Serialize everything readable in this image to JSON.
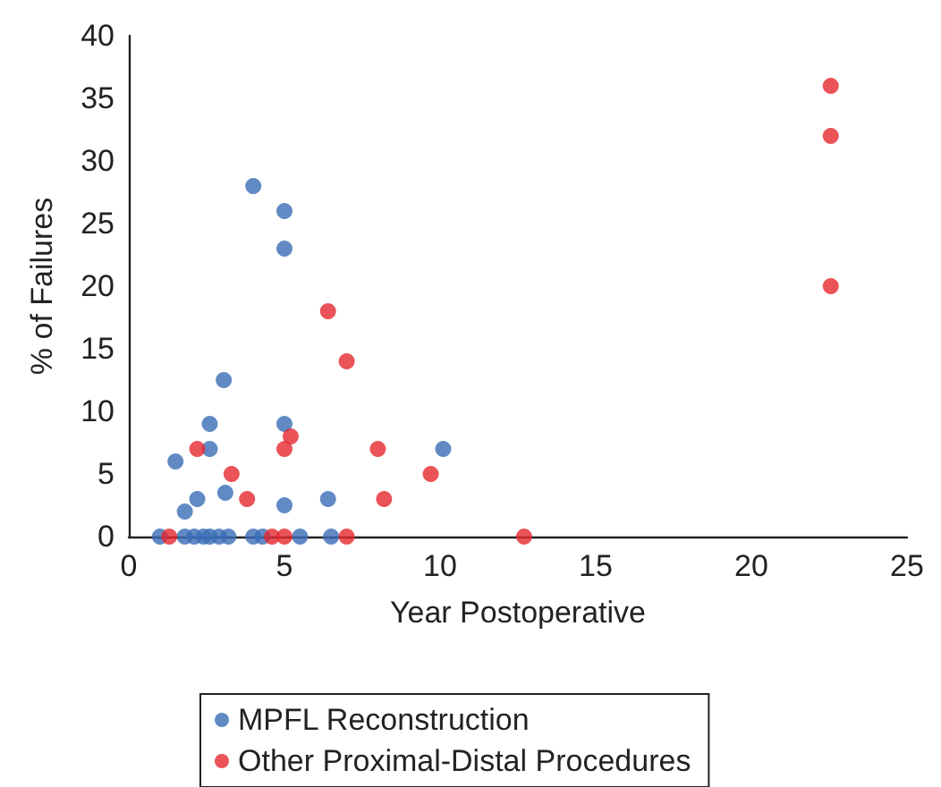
{
  "chart_data": {
    "type": "scatter",
    "xlabel": "Year Postoperative",
    "ylabel": "% of Failures",
    "xlim": [
      0,
      25
    ],
    "xticks": [
      0,
      5,
      10,
      15,
      20,
      25
    ],
    "ylim": [
      0,
      40
    ],
    "yticks": [
      0,
      5,
      10,
      15,
      20,
      25,
      30,
      35,
      40
    ],
    "grid": false,
    "legend": "bottom",
    "marker": "circle",
    "series": [
      {
        "name": "MPFL Reconstruction",
        "color": "#3a6db5",
        "x": [
          1.0,
          1.5,
          1.8,
          2.2,
          2.6,
          2.6,
          3.05,
          3.1,
          4.0,
          5.0,
          5.0,
          5.0,
          5.0,
          6.4,
          10.1,
          1.8,
          2.1,
          2.4,
          2.6,
          2.9,
          3.2,
          4.0,
          4.3,
          5.5,
          6.5
        ],
        "values": [
          0,
          6,
          2,
          3,
          9,
          7,
          12.5,
          3.5,
          28,
          26,
          23,
          9,
          2.5,
          3,
          7,
          0,
          0,
          0,
          0,
          0,
          0,
          0,
          0,
          0,
          0
        ]
      },
      {
        "name": "Other Proximal-Distal Procedures",
        "color": "#e5282e",
        "x": [
          1.3,
          2.2,
          3.3,
          3.8,
          4.6,
          5.0,
          7.0,
          12.7,
          5.0,
          5.2,
          6.4,
          7.0,
          8.0,
          8.2,
          9.7,
          22.55,
          22.55,
          22.55
        ],
        "values": [
          0,
          7,
          5,
          3,
          0,
          0,
          0,
          0,
          7,
          8,
          18,
          14,
          7,
          3,
          5,
          36,
          32,
          20
        ]
      }
    ]
  }
}
